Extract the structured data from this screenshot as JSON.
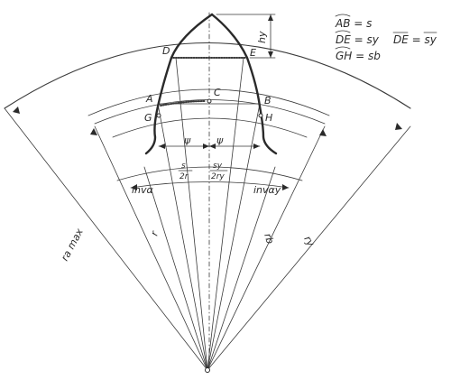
{
  "points": {
    "A": "A",
    "B": "B",
    "C": "C",
    "D": "D",
    "E": "E",
    "G": "G",
    "H": "H"
  },
  "dims": {
    "hy": "hy",
    "psi": "ψ",
    "s": "s",
    "two_r": "2r",
    "sy": "sy",
    "two_ry": "2ry",
    "inv_alpha": "invα",
    "inv_alpha_y": "invαy"
  },
  "radii": {
    "ra_max": "ra max",
    "r": "r",
    "rb": "rb",
    "ry": "ry"
  },
  "legend": {
    "ab": "AB = s",
    "de_arc": "DE = sy",
    "de_chord": "DE = sy",
    "gh": "GH = sb"
  }
}
